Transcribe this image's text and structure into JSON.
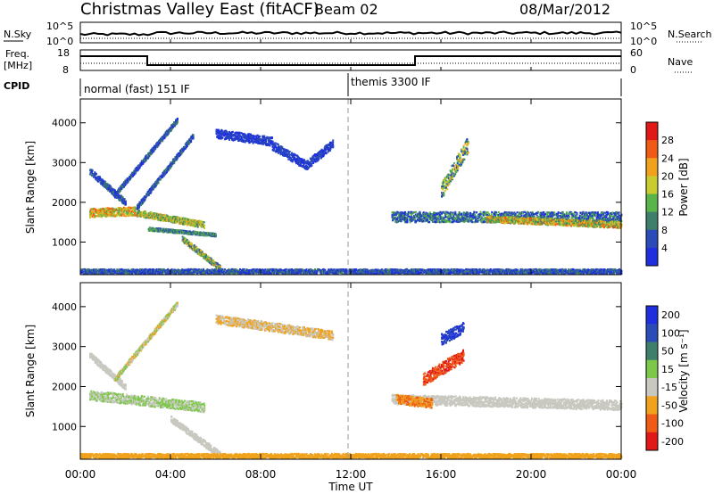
{
  "header": {
    "title": "Christmas Valley East (fitACF)",
    "beam": "Beam 02",
    "date": "08/Mar/2012"
  },
  "top_panel": {
    "label_left": "N.Sky",
    "label_right": "N.Search",
    "left_ticks": [
      "10^5",
      "10^0"
    ],
    "right_ticks": [
      "10^5",
      "10^0"
    ]
  },
  "freq_panel": {
    "label_left_1": "Freq.",
    "label_left_2": "[MHz]",
    "label_right": "Nave",
    "left_ticks": [
      "18",
      "8"
    ],
    "right_ticks": [
      "60",
      "0"
    ]
  },
  "cpid": {
    "label": "CPID",
    "mode1": "normal (fast) 151 IF",
    "mode2": "themis 3300 IF"
  },
  "chart_data": [
    {
      "type": "heatmap",
      "name": "power",
      "ylabel": "Slant Range [km]",
      "ylim": [
        180,
        4600
      ],
      "yticks": [
        "1000",
        "2000",
        "3000",
        "4000"
      ],
      "colorbar_label": "Power [dB]",
      "colorbar_ticks": [
        "4",
        "8",
        "12",
        "16",
        "20",
        "24",
        "28"
      ],
      "colors": [
        "#1f2fe0",
        "#2b4bb8",
        "#3d7f6a",
        "#59b54a",
        "#c8cc2e",
        "#f0a21c",
        "#ef5a16",
        "#e01818"
      ],
      "x_hours": [
        0,
        24
      ],
      "blobs": [
        {
          "h0": 0.4,
          "h1": 2.5,
          "r0": 1750,
          "r1": 1800,
          "w": 110,
          "lvl": [
            3,
            6
          ]
        },
        {
          "h0": 2.5,
          "h1": 5.5,
          "r0": 1750,
          "r1": 1450,
          "w": 80,
          "lvl": [
            2,
            5
          ]
        },
        {
          "h0": 3.0,
          "h1": 6.0,
          "r0": 1350,
          "r1": 1200,
          "w": 40,
          "lvl": [
            1,
            3
          ]
        },
        {
          "h0": 4.5,
          "h1": 6.2,
          "r0": 1100,
          "r1": 350,
          "w": 70,
          "lvl": [
            1,
            5
          ]
        },
        {
          "h0": 0.4,
          "h1": 2.0,
          "r0": 2800,
          "r1": 2000,
          "w": 80,
          "lvl": [
            0,
            2
          ]
        },
        {
          "h0": 1.5,
          "h1": 4.3,
          "r0": 2200,
          "r1": 4100,
          "w": 60,
          "lvl": [
            0,
            2
          ]
        },
        {
          "h0": 2.5,
          "h1": 5.0,
          "r0": 1900,
          "r1": 3700,
          "w": 60,
          "lvl": [
            0,
            2
          ]
        },
        {
          "h0": 6.0,
          "h1": 8.5,
          "r0": 3750,
          "r1": 3550,
          "w": 110,
          "lvl": [
            0,
            1
          ]
        },
        {
          "h0": 8.5,
          "h1": 10.0,
          "r0": 3450,
          "r1": 2950,
          "w": 110,
          "lvl": [
            0,
            1
          ]
        },
        {
          "h0": 10.0,
          "h1": 11.2,
          "r0": 2950,
          "r1": 3500,
          "w": 110,
          "lvl": [
            0,
            1
          ]
        },
        {
          "h0": 13.8,
          "h1": 24.0,
          "r0": 1650,
          "r1": 1650,
          "w": 130,
          "lvl": [
            0,
            3
          ]
        },
        {
          "h0": 18.0,
          "h1": 24.0,
          "r0": 1600,
          "r1": 1450,
          "w": 80,
          "lvl": [
            2,
            6
          ]
        },
        {
          "h0": 16.0,
          "h1": 17.2,
          "r0": 2300,
          "r1": 3500,
          "w": 200,
          "lvl": [
            1,
            5
          ]
        },
        {
          "h0": 0.0,
          "h1": 24.0,
          "r0": 270,
          "r1": 270,
          "w": 70,
          "lvl": [
            0,
            2
          ]
        }
      ]
    },
    {
      "type": "heatmap",
      "name": "velocity",
      "ylabel": "Slant Range [km]",
      "ylim": [
        180,
        4600
      ],
      "yticks": [
        "1000",
        "2000",
        "3000",
        "4000"
      ],
      "colorbar_label": "Velocity [m s⁻¹]",
      "colorbar_ticks": [
        "200",
        "100",
        "50",
        "15",
        "-15",
        "-50",
        "-100",
        "-200"
      ],
      "colors": [
        "#1f2fe0",
        "#2b4bb8",
        "#3d7f6a",
        "#7dc84a",
        "#c8c8c0",
        "#f0a21c",
        "#ef5a16",
        "#e01818"
      ],
      "x_hours": [
        0,
        24
      ],
      "blobs": [
        {
          "h0": 0.4,
          "h1": 5.5,
          "r0": 1800,
          "r1": 1500,
          "w": 120,
          "lvl": [
            3,
            4
          ]
        },
        {
          "h0": 4.0,
          "h1": 6.2,
          "r0": 1200,
          "r1": 300,
          "w": 80,
          "lvl": [
            4,
            4
          ]
        },
        {
          "h0": 0.4,
          "h1": 2.0,
          "r0": 2800,
          "r1": 2000,
          "w": 80,
          "lvl": [
            4,
            4
          ]
        },
        {
          "h0": 1.5,
          "h1": 4.3,
          "r0": 2200,
          "r1": 4100,
          "w": 60,
          "lvl": [
            3,
            5
          ]
        },
        {
          "h0": 6.0,
          "h1": 11.2,
          "r0": 3700,
          "r1": 3300,
          "w": 110,
          "lvl": [
            4,
            5
          ]
        },
        {
          "h0": 13.8,
          "h1": 24.0,
          "r0": 1700,
          "r1": 1550,
          "w": 120,
          "lvl": [
            4,
            4
          ]
        },
        {
          "h0": 14.0,
          "h1": 15.6,
          "r0": 1700,
          "r1": 1600,
          "w": 120,
          "lvl": [
            5,
            6
          ]
        },
        {
          "h0": 15.2,
          "h1": 17.0,
          "r0": 2200,
          "r1": 2800,
          "w": 160,
          "lvl": [
            6,
            7
          ]
        },
        {
          "h0": 16.0,
          "h1": 17.0,
          "r0": 3200,
          "r1": 3500,
          "w": 140,
          "lvl": [
            0,
            1
          ]
        },
        {
          "h0": 0.0,
          "h1": 24.0,
          "r0": 260,
          "r1": 260,
          "w": 80,
          "lvl": [
            5,
            5
          ]
        }
      ]
    }
  ],
  "x_axis": {
    "label": "Time UT",
    "ticks": [
      "00:00",
      "04:00",
      "08:00",
      "12:00",
      "16:00",
      "20:00",
      "00:00"
    ]
  }
}
